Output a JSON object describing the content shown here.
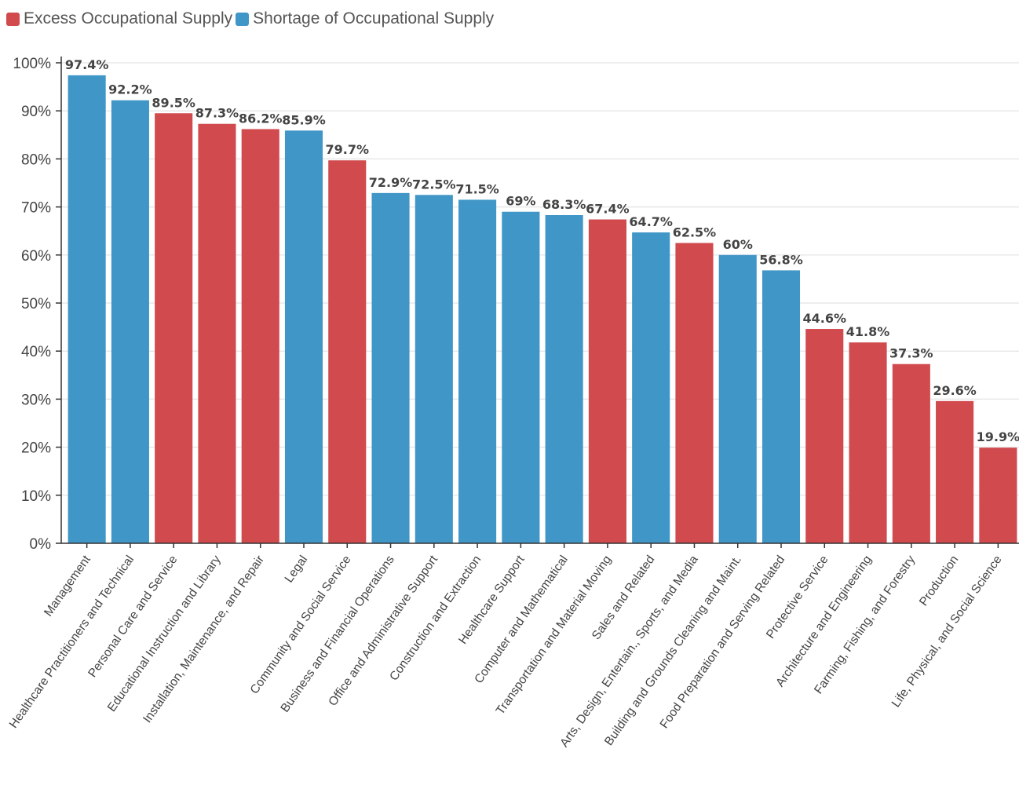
{
  "legend": {
    "excess_label": "Excess Occupational Supply",
    "shortage_label": "Shortage of Occupational Supply"
  },
  "colors": {
    "excess": "#d04a4e",
    "shortage": "#4096c7",
    "grid": "#e8e8e8",
    "axis": "#333333"
  },
  "chart_data": {
    "type": "bar",
    "ylim": [
      0,
      100
    ],
    "yticks": [
      "0%",
      "10%",
      "20%",
      "30%",
      "40%",
      "50%",
      "60%",
      "70%",
      "80%",
      "90%",
      "100%"
    ],
    "grid": true,
    "legend_position": "top-left",
    "series": [
      {
        "name": "Excess Occupational Supply",
        "color": "#d04a4e"
      },
      {
        "name": "Shortage of Occupational Supply",
        "color": "#4096c7"
      }
    ],
    "bars": [
      {
        "category": "Management",
        "value": 97.4,
        "label": "97.4%",
        "series": "shortage"
      },
      {
        "category": "Healthcare Practitioners and Technical",
        "value": 92.2,
        "label": "92.2%",
        "series": "shortage"
      },
      {
        "category": "Personal Care and Service",
        "value": 89.5,
        "label": "89.5%",
        "series": "excess"
      },
      {
        "category": "Educational Instruction and Library",
        "value": 87.3,
        "label": "87.3%",
        "series": "excess"
      },
      {
        "category": "Installation, Maintenance, and Repair",
        "value": 86.2,
        "label": "86.2%",
        "series": "excess"
      },
      {
        "category": "Legal",
        "value": 85.9,
        "label": "85.9%",
        "series": "shortage"
      },
      {
        "category": "Community and Social Service",
        "value": 79.7,
        "label": "79.7%",
        "series": "excess"
      },
      {
        "category": "Business and Financial Operations",
        "value": 72.9,
        "label": "72.9%",
        "series": "shortage"
      },
      {
        "category": "Office and Administrative Support",
        "value": 72.5,
        "label": "72.5%",
        "series": "shortage"
      },
      {
        "category": "Construction and Extraction",
        "value": 71.5,
        "label": "71.5%",
        "series": "shortage"
      },
      {
        "category": "Healthcare Support",
        "value": 69,
        "label": "69%",
        "series": "shortage"
      },
      {
        "category": "Computer and Mathematical",
        "value": 68.3,
        "label": "68.3%",
        "series": "shortage"
      },
      {
        "category": "Transportation and Material Moving",
        "value": 67.4,
        "label": "67.4%",
        "series": "excess"
      },
      {
        "category": "Sales and Related",
        "value": 64.7,
        "label": "64.7%",
        "series": "shortage"
      },
      {
        "category": "Arts, Design, Entertain., Sports, and Media",
        "value": 62.5,
        "label": "62.5%",
        "series": "excess"
      },
      {
        "category": "Building and Grounds Cleaning and Maint.",
        "value": 60,
        "label": "60%",
        "series": "shortage"
      },
      {
        "category": "Food Preparation and Serving Related",
        "value": 56.8,
        "label": "56.8%",
        "series": "shortage"
      },
      {
        "category": "Protective Service",
        "value": 44.6,
        "label": "44.6%",
        "series": "excess"
      },
      {
        "category": "Architecture and Engineering",
        "value": 41.8,
        "label": "41.8%",
        "series": "excess"
      },
      {
        "category": "Farming, Fishing, and Forestry",
        "value": 37.3,
        "label": "37.3%",
        "series": "excess"
      },
      {
        "category": "Production",
        "value": 29.6,
        "label": "29.6%",
        "series": "excess"
      },
      {
        "category": "Life, Physical, and Social Science",
        "value": 19.9,
        "label": "19.9%",
        "series": "excess"
      }
    ]
  }
}
